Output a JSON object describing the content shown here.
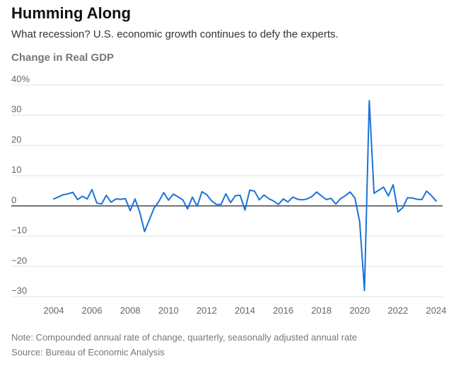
{
  "header": {
    "title": "Humming Along",
    "subtitle": "What recession? U.S. economic growth continues to defy the experts."
  },
  "footer": {
    "note": "Note: Compounded annual rate of change, quarterly, seasonally adjusted annual rate",
    "source": "Source: Bureau of Economic Analysis"
  },
  "colors": {
    "line": "#1a73d9",
    "grid": "#e3e3e3",
    "zero": "#222222",
    "text": "#666666"
  },
  "chart_data": {
    "type": "line",
    "title": "Humming Along",
    "subtitle": "What recession? U.S. economic growth continues to defy the experts.",
    "ylabel": "Change in Real GDP",
    "xlabel": "",
    "ylim": [
      -30,
      40
    ],
    "xlim": [
      2003.9,
      2024.2
    ],
    "yticks": [
      40,
      30,
      20,
      10,
      0,
      -10,
      -20,
      -30
    ],
    "ytick_labels": [
      "40%",
      "30",
      "20",
      "10",
      "0",
      "−10",
      "−20",
      "−30"
    ],
    "xticks": [
      2004,
      2006,
      2008,
      2010,
      2012,
      2014,
      2016,
      2018,
      2020,
      2022,
      2024
    ],
    "xtick_labels": [
      "2004",
      "2006",
      "2008",
      "2010",
      "2012",
      "2014",
      "2016",
      "2018",
      "2020",
      "2022",
      "2024"
    ],
    "grid": true,
    "series": [
      {
        "name": "Change in Real GDP",
        "x": [
          2004.0,
          2004.25,
          2004.5,
          2004.75,
          2005.0,
          2005.25,
          2005.5,
          2005.75,
          2006.0,
          2006.25,
          2006.5,
          2006.75,
          2007.0,
          2007.25,
          2007.5,
          2007.75,
          2008.0,
          2008.25,
          2008.5,
          2008.75,
          2009.0,
          2009.25,
          2009.5,
          2009.75,
          2010.0,
          2010.25,
          2010.5,
          2010.75,
          2011.0,
          2011.25,
          2011.5,
          2011.75,
          2012.0,
          2012.25,
          2012.5,
          2012.75,
          2013.0,
          2013.25,
          2013.5,
          2013.75,
          2014.0,
          2014.25,
          2014.5,
          2014.75,
          2015.0,
          2015.25,
          2015.5,
          2015.75,
          2016.0,
          2016.25,
          2016.5,
          2016.75,
          2017.0,
          2017.25,
          2017.5,
          2017.75,
          2018.0,
          2018.25,
          2018.5,
          2018.75,
          2019.0,
          2019.25,
          2019.5,
          2019.75,
          2020.0,
          2020.25,
          2020.5,
          2020.75,
          2021.0,
          2021.25,
          2021.5,
          2021.75,
          2022.0,
          2022.25,
          2022.5,
          2022.75,
          2023.0,
          2023.25,
          2023.5,
          2023.75,
          2024.0
        ],
        "values": [
          2.3,
          3.0,
          3.7,
          4.0,
          4.5,
          2.1,
          3.2,
          2.3,
          5.4,
          1.0,
          0.6,
          3.5,
          1.2,
          2.3,
          2.2,
          2.4,
          -1.6,
          2.3,
          -2.1,
          -8.5,
          -4.6,
          -0.7,
          1.5,
          4.4,
          1.9,
          3.9,
          3.0,
          2.0,
          -1.0,
          2.9,
          -0.1,
          4.7,
          3.7,
          1.7,
          0.5,
          0.5,
          4.0,
          1.1,
          3.4,
          3.5,
          -1.4,
          5.2,
          4.9,
          2.0,
          3.6,
          2.4,
          1.6,
          0.5,
          2.3,
          1.3,
          2.9,
          2.2,
          2.0,
          2.3,
          3.1,
          4.6,
          3.3,
          2.1,
          2.5,
          0.6,
          2.4,
          3.4,
          4.6,
          2.6,
          -5.3,
          -28.0,
          34.8,
          4.2,
          5.2,
          6.2,
          3.3,
          7.0,
          -2.0,
          -0.6,
          2.7,
          2.6,
          2.2,
          2.1,
          4.9,
          3.4,
          1.6
        ]
      }
    ]
  }
}
